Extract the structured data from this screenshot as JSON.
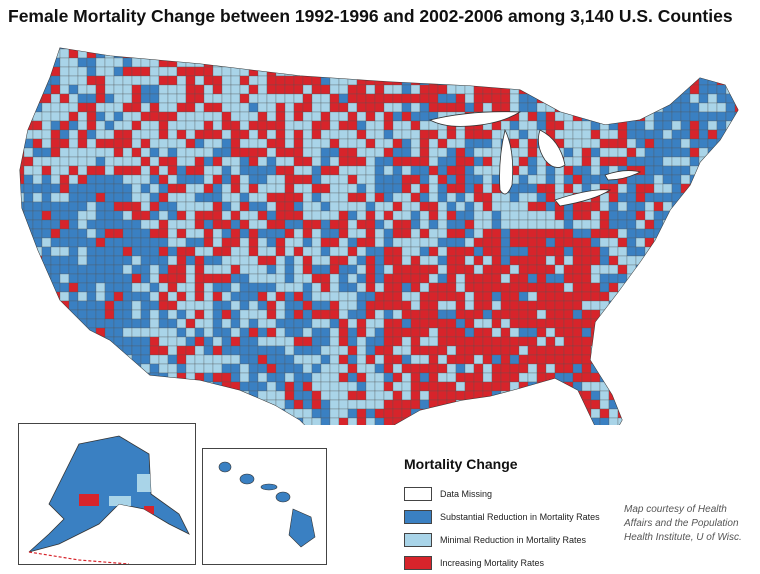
{
  "title": "Female Mortality  Change between 1992-1996 and 2002-2006 among 3,140 U.S. Counties",
  "colors": {
    "missing": "#ffffff",
    "substantial_reduction": "#3a80c2",
    "minimal_reduction": "#a9d4e8",
    "increasing": "#d7242b",
    "county_border": "#555555"
  },
  "legend": {
    "title": "Mortality Change",
    "items": [
      {
        "label": "Data Missing",
        "color": "#ffffff"
      },
      {
        "label": "Substantial Reduction in Mortality Rates",
        "color": "#3a80c2"
      },
      {
        "label": "Minimal  Reduction in Mortality Rates",
        "color": "#a9d4e8"
      },
      {
        "label": "Increasing Mortality Rates",
        "color": "#d7242b"
      }
    ]
  },
  "credit": {
    "lines": [
      "Map courtesy of Health",
      "Affairs and the Population",
      "Health Institute, U of Wisc."
    ]
  },
  "insets": [
    "Alaska",
    "Hawaii"
  ]
}
